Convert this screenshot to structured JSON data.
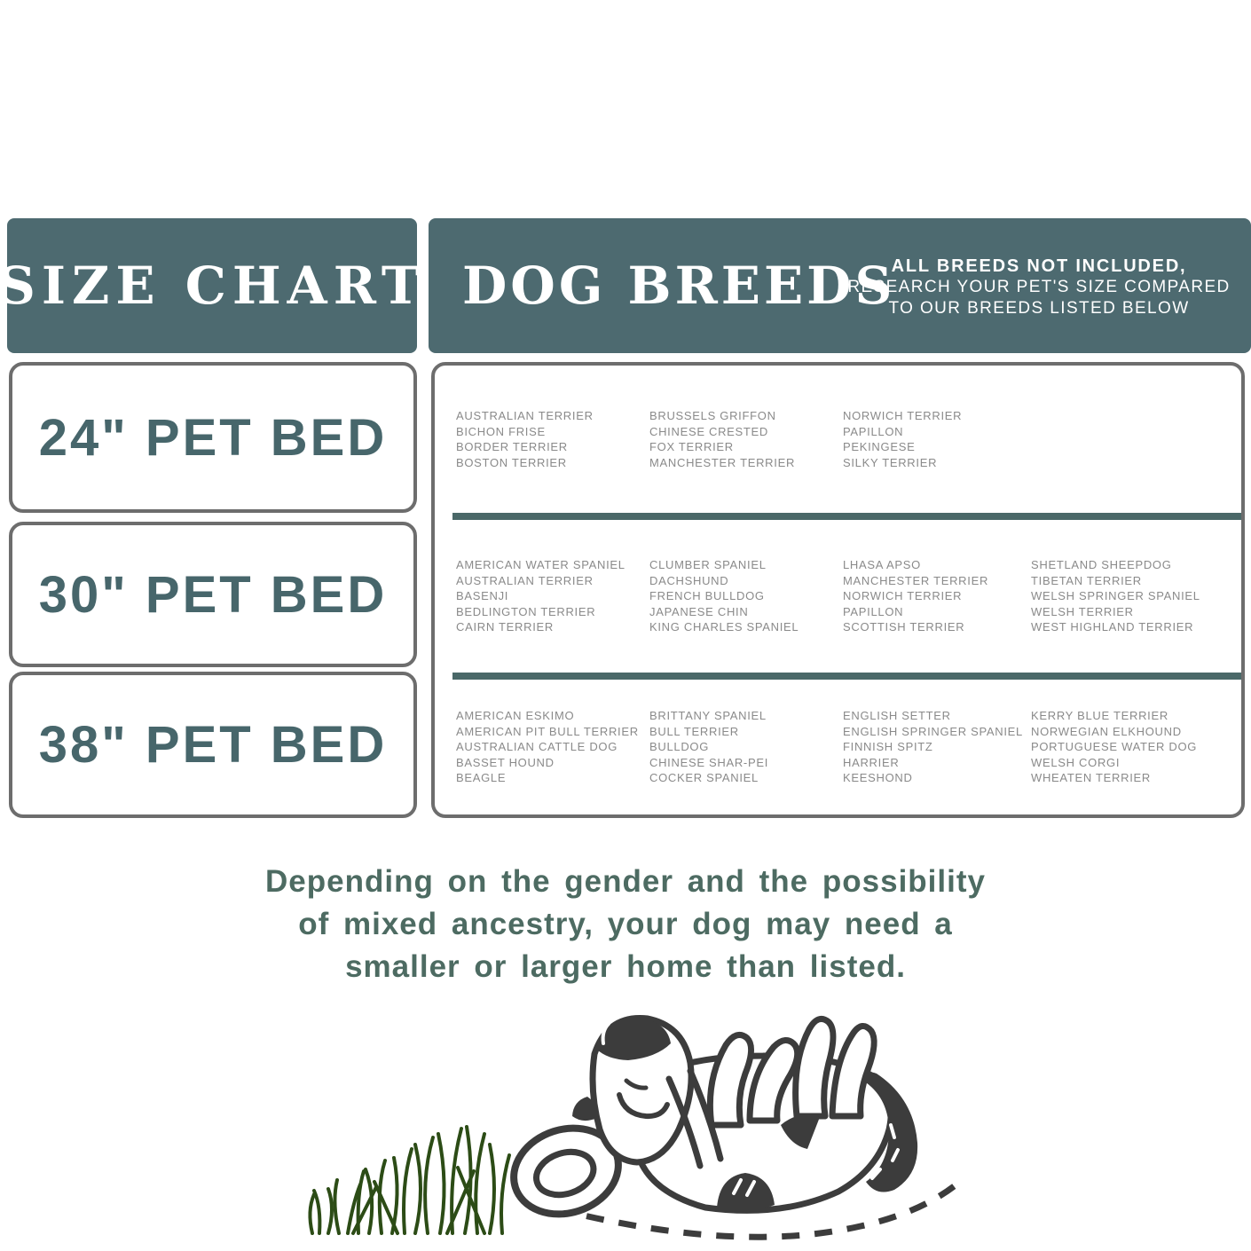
{
  "header": {
    "size_chart_title": "SIZE CHART",
    "dog_breeds_title": "DOG BREEDS",
    "note_line1": "ALL BREEDS NOT INCLUDED,",
    "note_line2": "RESEARCH YOUR PET'S SIZE COMPARED",
    "note_line3": "TO OUR BREEDS LISTED BELOW"
  },
  "rows": [
    {
      "size_label": "24\" PET BED",
      "columns": [
        [
          "AUSTRALIAN TERRIER",
          "BICHON FRISE",
          "BORDER TERRIER",
          "BOSTON TERRIER"
        ],
        [
          "BRUSSELS GRIFFON",
          "CHINESE CRESTED",
          "FOX TERRIER",
          "MANCHESTER TERRIER"
        ],
        [
          "NORWICH TERRIER",
          "PAPILLON",
          "PEKINGESE",
          "SILKY TERRIER"
        ],
        []
      ]
    },
    {
      "size_label": "30\" PET BED",
      "columns": [
        [
          "AMERICAN WATER SPANIEL",
          "AUSTRALIAN TERRIER",
          "BASENJI",
          "BEDLINGTON TERRIER",
          "CAIRN TERRIER"
        ],
        [
          "CLUMBER SPANIEL",
          "DACHSHUND",
          "FRENCH BULLDOG",
          "JAPANESE CHIN",
          "KING CHARLES SPANIEL"
        ],
        [
          "LHASA APSO",
          "MANCHESTER TERRIER",
          "NORWICH TERRIER",
          "PAPILLON",
          "SCOTTISH TERRIER"
        ],
        [
          "SHETLAND SHEEPDOG",
          "TIBETAN TERRIER",
          "WELSH SPRINGER SPANIEL",
          "WELSH TERRIER",
          "WEST HIGHLAND TERRIER"
        ]
      ]
    },
    {
      "size_label": "38\" PET BED",
      "columns": [
        [
          "AMERICAN ESKIMO",
          "AMERICAN PIT BULL TERRIER",
          "AUSTRALIAN CATTLE DOG",
          "BASSET HOUND",
          "BEAGLE"
        ],
        [
          "BRITTANY SPANIEL",
          "BULL TERRIER",
          "BULLDOG",
          "CHINESE SHAR-PEI",
          "COCKER SPANIEL"
        ],
        [
          "ENGLISH SETTER",
          "ENGLISH SPRINGER SPANIEL",
          "FINNISH SPITZ",
          "HARRIER",
          "KEESHOND"
        ],
        [
          "KERRY BLUE TERRIER",
          "NORWEGIAN ELKHOUND",
          "PORTUGUESE WATER DOG",
          "WELSH CORGI",
          "WHEATEN TERRIER"
        ]
      ]
    }
  ],
  "footer_note": {
    "line1": "Depending on the gender and the possibility",
    "line2": "of mixed ancestry, your dog may need a",
    "line3": "smaller or larger home than listed."
  },
  "colors": {
    "header_background": "#4d6a70",
    "header_text": "#ffffff",
    "size_label_text": "#47666b",
    "box_border": "#6d6d6d",
    "section_divider": "#4a6868",
    "breed_text": "#8a8a8a",
    "footer_text": "#4d6b62",
    "grass_green": "#2c4c16",
    "dog_outline": "#3c3c3c"
  }
}
